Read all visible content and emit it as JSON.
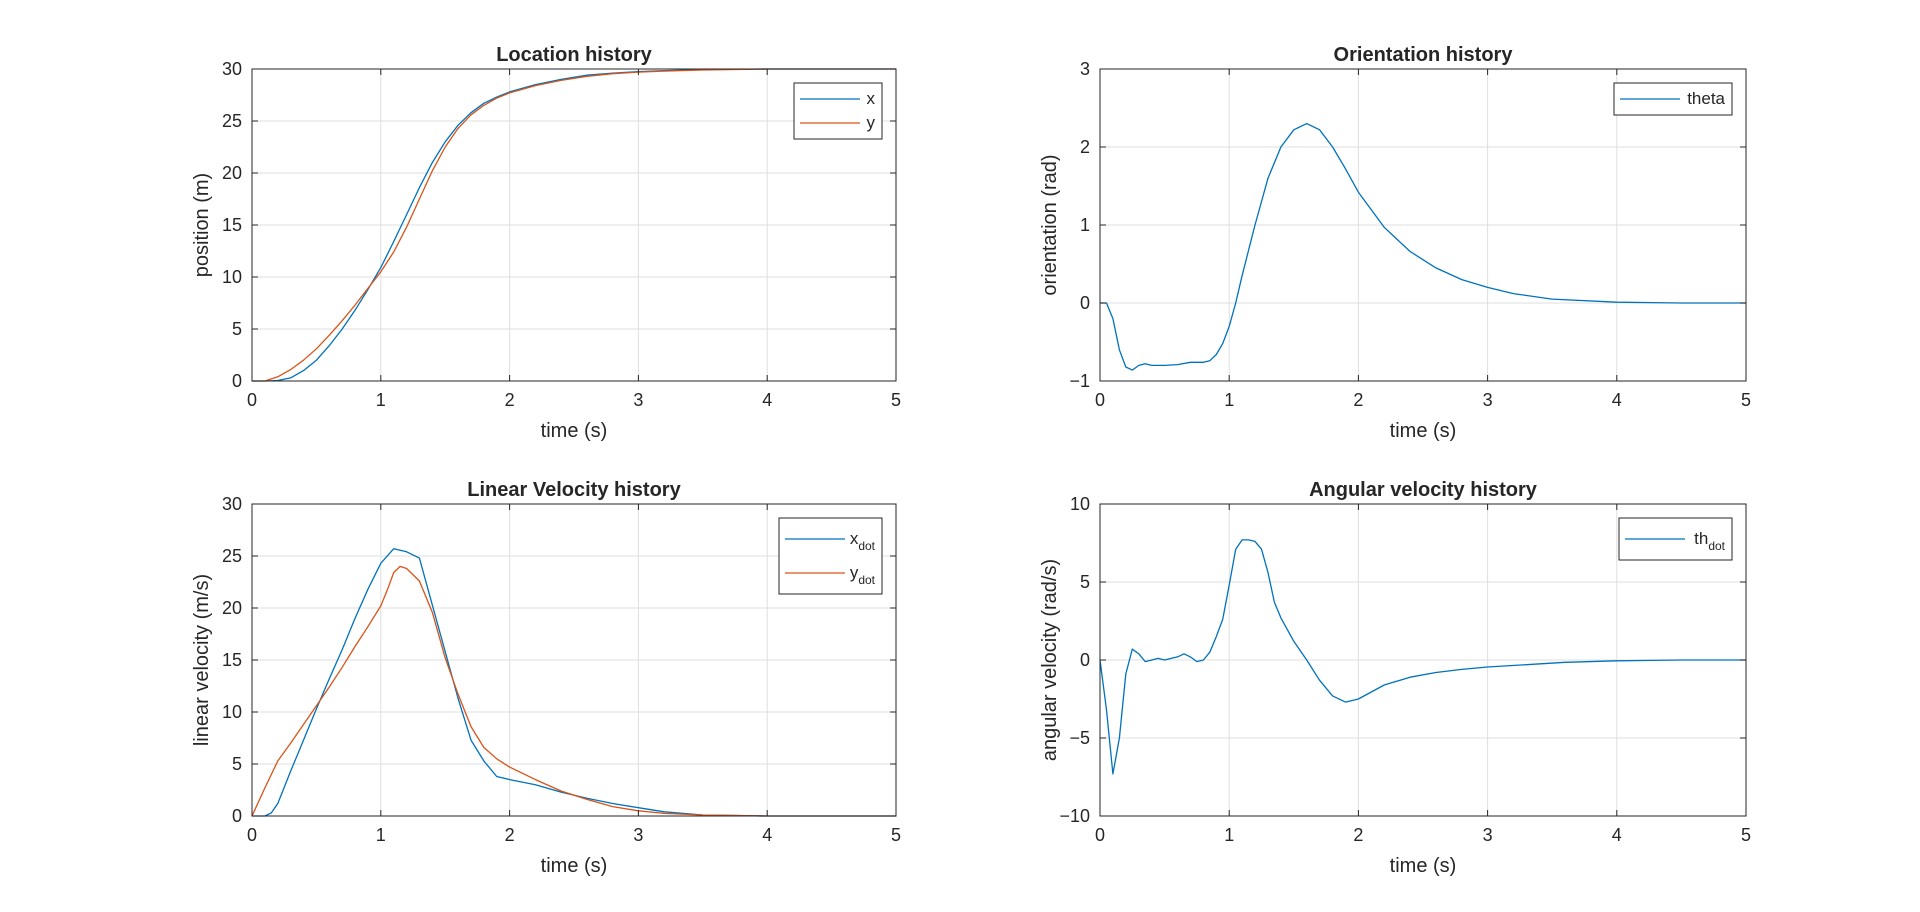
{
  "chart_data": [
    {
      "type": "line",
      "title": "Location history",
      "xlabel": "time (s)",
      "ylabel": "position (m)",
      "xlim": [
        0,
        5
      ],
      "ylim": [
        0,
        30
      ],
      "xticks": [
        "0",
        "1",
        "2",
        "3",
        "4",
        "5"
      ],
      "yticks": [
        "0",
        "5",
        "10",
        "15",
        "20",
        "25",
        "30"
      ],
      "grid": true,
      "legend_position": "top-right",
      "series": [
        {
          "name": "x",
          "color": "#0072BD",
          "x": [
            0,
            0.1,
            0.2,
            0.3,
            0.4,
            0.5,
            0.6,
            0.7,
            0.8,
            0.9,
            1.0,
            1.1,
            1.2,
            1.3,
            1.4,
            1.5,
            1.6,
            1.7,
            1.8,
            1.9,
            2.0,
            2.2,
            2.4,
            2.6,
            2.8,
            3.0,
            3.2,
            3.5,
            4.0,
            4.5,
            5.0
          ],
          "y": [
            0,
            0,
            0.05,
            0.3,
            1.0,
            2.0,
            3.4,
            5.0,
            6.8,
            8.8,
            10.9,
            13.4,
            16.0,
            18.6,
            21.0,
            23.0,
            24.6,
            25.8,
            26.7,
            27.3,
            27.8,
            28.5,
            29.0,
            29.4,
            29.6,
            29.75,
            29.85,
            29.95,
            30.0,
            30.0,
            30.0
          ]
        },
        {
          "name": "y",
          "color": "#D95319",
          "x": [
            0,
            0.1,
            0.2,
            0.3,
            0.4,
            0.5,
            0.6,
            0.7,
            0.8,
            0.9,
            1.0,
            1.1,
            1.2,
            1.3,
            1.4,
            1.5,
            1.6,
            1.7,
            1.8,
            1.9,
            2.0,
            2.2,
            2.4,
            2.6,
            2.8,
            3.0,
            3.2,
            3.5,
            4.0,
            4.5,
            5.0
          ],
          "y": [
            0,
            0,
            0.4,
            1.1,
            2.0,
            3.1,
            4.4,
            5.8,
            7.3,
            8.9,
            10.5,
            12.4,
            14.8,
            17.5,
            20.2,
            22.5,
            24.3,
            25.6,
            26.5,
            27.2,
            27.7,
            28.4,
            28.9,
            29.3,
            29.55,
            29.7,
            29.8,
            29.9,
            30.0,
            30.0,
            30.0
          ]
        }
      ]
    },
    {
      "type": "line",
      "title": "Orientation history",
      "xlabel": "time (s)",
      "ylabel": "orientation (rad)",
      "xlim": [
        0,
        5
      ],
      "ylim": [
        -1,
        3
      ],
      "xticks": [
        "0",
        "1",
        "2",
        "3",
        "4",
        "5"
      ],
      "yticks": [
        "-1",
        "0",
        "1",
        "2",
        "3"
      ],
      "grid": true,
      "legend_position": "top-right",
      "series": [
        {
          "name": "theta",
          "color": "#0072BD",
          "x": [
            0,
            0.05,
            0.1,
            0.15,
            0.2,
            0.25,
            0.3,
            0.35,
            0.4,
            0.5,
            0.6,
            0.7,
            0.8,
            0.85,
            0.9,
            0.95,
            1.0,
            1.05,
            1.1,
            1.2,
            1.3,
            1.4,
            1.5,
            1.6,
            1.7,
            1.8,
            1.9,
            2.0,
            2.2,
            2.4,
            2.6,
            2.8,
            3.0,
            3.2,
            3.5,
            4.0,
            4.5,
            5.0
          ],
          "y": [
            0,
            0,
            -0.2,
            -0.6,
            -0.82,
            -0.86,
            -0.8,
            -0.78,
            -0.8,
            -0.8,
            -0.79,
            -0.76,
            -0.76,
            -0.74,
            -0.66,
            -0.52,
            -0.3,
            0.0,
            0.35,
            1.0,
            1.6,
            2.0,
            2.22,
            2.3,
            2.22,
            2.0,
            1.72,
            1.42,
            0.97,
            0.66,
            0.45,
            0.3,
            0.2,
            0.12,
            0.05,
            0.01,
            0.0,
            0.0
          ]
        }
      ]
    },
    {
      "type": "line",
      "title": "Linear Velocity history",
      "xlabel": "time (s)",
      "ylabel": "linear velocity (m/s)",
      "xlim": [
        0,
        5
      ],
      "ylim": [
        0,
        30
      ],
      "xticks": [
        "0",
        "1",
        "2",
        "3",
        "4",
        "5"
      ],
      "yticks": [
        "0",
        "5",
        "10",
        "15",
        "20",
        "25",
        "30"
      ],
      "grid": true,
      "legend_position": "top-right",
      "series": [
        {
          "name": "x",
          "name_sub": "dot",
          "color": "#0072BD",
          "x": [
            0,
            0.1,
            0.15,
            0.2,
            0.3,
            0.4,
            0.5,
            0.6,
            0.7,
            0.8,
            0.9,
            1.0,
            1.1,
            1.2,
            1.3,
            1.4,
            1.5,
            1.6,
            1.7,
            1.8,
            1.9,
            2.0,
            2.2,
            2.4,
            2.6,
            2.8,
            3.0,
            3.2,
            3.5,
            4.0,
            4.5,
            5.0
          ],
          "y": [
            0,
            0,
            0.3,
            1.2,
            4.3,
            7.3,
            10.3,
            13.2,
            16.0,
            19.0,
            21.8,
            24.3,
            25.7,
            25.4,
            24.8,
            20.3,
            15.8,
            11.3,
            7.3,
            5.3,
            3.8,
            3.5,
            3.0,
            2.3,
            1.7,
            1.2,
            0.8,
            0.4,
            0.1,
            0.0,
            0.0,
            0.0
          ]
        },
        {
          "name": "y",
          "name_sub": "dot",
          "color": "#D95319",
          "x": [
            0,
            0.1,
            0.2,
            0.3,
            0.4,
            0.5,
            0.6,
            0.7,
            0.8,
            0.9,
            1.0,
            1.05,
            1.1,
            1.15,
            1.2,
            1.3,
            1.4,
            1.5,
            1.6,
            1.7,
            1.8,
            1.9,
            2.0,
            2.2,
            2.4,
            2.6,
            2.8,
            3.0,
            3.2,
            3.5,
            4.0,
            4.5,
            5.0
          ],
          "y": [
            0,
            2.7,
            5.3,
            7.0,
            8.8,
            10.6,
            12.4,
            14.3,
            16.3,
            18.2,
            20.2,
            21.7,
            23.4,
            24.0,
            23.8,
            22.6,
            19.6,
            15.2,
            11.7,
            8.6,
            6.6,
            5.5,
            4.7,
            3.5,
            2.4,
            1.6,
            0.9,
            0.5,
            0.25,
            0.1,
            0.0,
            0.0,
            0.0
          ]
        }
      ]
    },
    {
      "type": "line",
      "title": "Angular velocity history",
      "xlabel": "time (s)",
      "ylabel": "angular velocity (rad/s)",
      "xlim": [
        0,
        5
      ],
      "ylim": [
        -10,
        10
      ],
      "xticks": [
        "0",
        "1",
        "2",
        "3",
        "4",
        "5"
      ],
      "yticks": [
        "-10",
        "-5",
        "0",
        "5",
        "10"
      ],
      "grid": true,
      "legend_position": "top-right",
      "series": [
        {
          "name": "th",
          "name_sub": "dot",
          "color": "#0072BD",
          "x": [
            0,
            0.05,
            0.1,
            0.15,
            0.2,
            0.25,
            0.3,
            0.35,
            0.4,
            0.45,
            0.5,
            0.55,
            0.6,
            0.65,
            0.7,
            0.75,
            0.8,
            0.85,
            0.9,
            0.95,
            1.0,
            1.05,
            1.1,
            1.15,
            1.2,
            1.25,
            1.3,
            1.35,
            1.4,
            1.5,
            1.6,
            1.7,
            1.8,
            1.9,
            2.0,
            2.2,
            2.4,
            2.6,
            2.8,
            3.0,
            3.3,
            3.6,
            4.0,
            4.5,
            5.0
          ],
          "y": [
            0,
            -3.2,
            -7.3,
            -5.0,
            -0.9,
            0.7,
            0.4,
            -0.1,
            0.0,
            0.1,
            0.0,
            0.1,
            0.2,
            0.4,
            0.2,
            -0.1,
            0.0,
            0.5,
            1.5,
            2.6,
            4.8,
            7.1,
            7.7,
            7.7,
            7.6,
            7.1,
            5.6,
            3.7,
            2.7,
            1.2,
            0.0,
            -1.3,
            -2.3,
            -2.7,
            -2.5,
            -1.6,
            -1.1,
            -0.8,
            -0.6,
            -0.45,
            -0.3,
            -0.15,
            -0.05,
            0.0,
            0.0
          ]
        }
      ]
    }
  ]
}
